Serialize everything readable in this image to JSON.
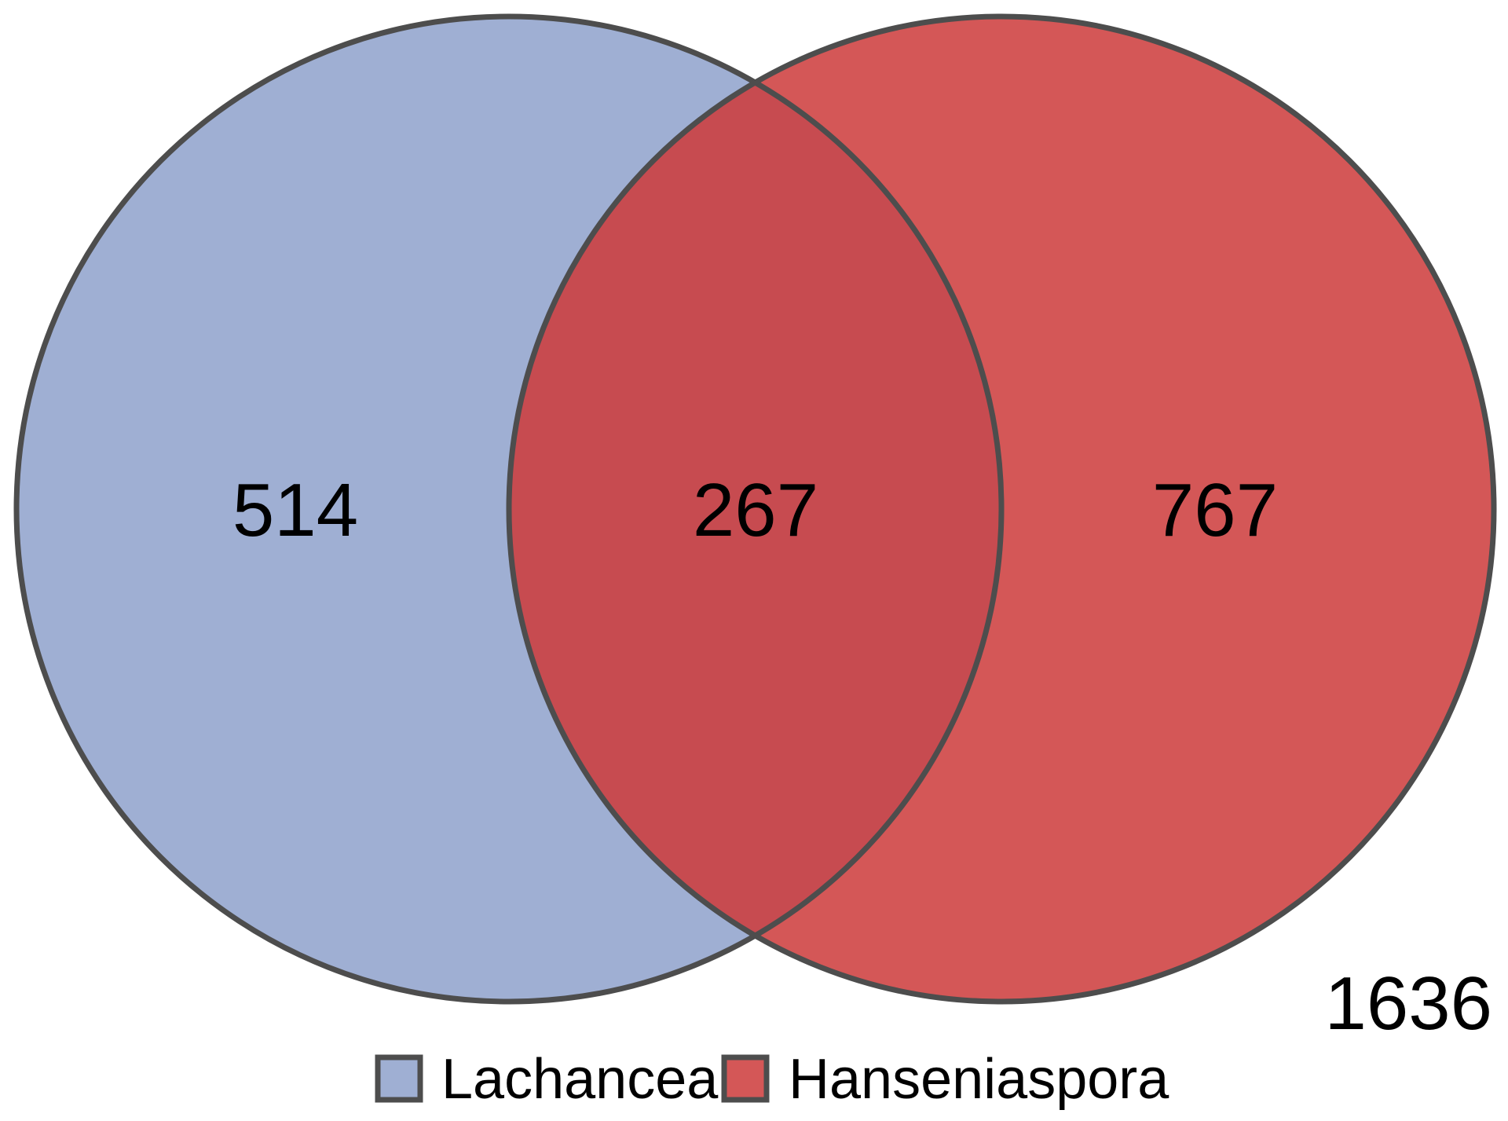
{
  "diagram": {
    "type": "venn",
    "sets": [
      {
        "name": "Lachancea",
        "color": "#9FAFD3",
        "only_count": "514"
      },
      {
        "name": "Hanseniaspora",
        "color": "#D45757",
        "only_count": "767"
      }
    ],
    "intersection": {
      "count": "267",
      "color": "#C74B50"
    },
    "total": "1636",
    "outline_color": "#4D4D4D"
  },
  "legend": {
    "items": [
      {
        "label": "Lachancea",
        "color": "#9FAFD3"
      },
      {
        "label": "Hanseniaspora",
        "color": "#D45757"
      }
    ]
  }
}
